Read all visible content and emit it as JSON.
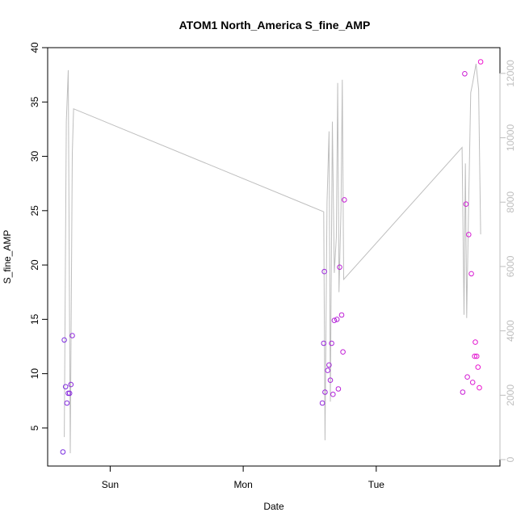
{
  "chart_data": {
    "type": "scatter",
    "title": "ATOM1 North_America S_fine_AMP",
    "xlabel": "Date",
    "ylabel": "S_fine_AMP",
    "x_ticks": [
      {
        "label": "Sun",
        "x": 0.95
      },
      {
        "label": "Mon",
        "x": 1.95
      },
      {
        "label": "Tue",
        "x": 2.95
      }
    ],
    "xlim": [
      0.48,
      3.88
    ],
    "ylim": [
      1.5,
      40.0
    ],
    "y_ticks": [
      5,
      10,
      15,
      20,
      25,
      30,
      35,
      40
    ],
    "y2lim": [
      -200,
      12800
    ],
    "y2_ticks": [
      0,
      2000,
      4000,
      6000,
      8000,
      10000,
      12000
    ],
    "y2_color": "#bebebe",
    "grid": false,
    "series": [
      {
        "kind": "points",
        "color_start": "#7b2fe0",
        "color_end": "#ef16cf",
        "points": [
          {
            "x": 0.595,
            "y": 2.8
          },
          {
            "x": 0.605,
            "y": 13.1
          },
          {
            "x": 0.615,
            "y": 8.8
          },
          {
            "x": 0.625,
            "y": 7.3
          },
          {
            "x": 0.635,
            "y": 8.2
          },
          {
            "x": 0.645,
            "y": 8.2
          },
          {
            "x": 0.655,
            "y": 9.0
          },
          {
            "x": 0.665,
            "y": 13.5
          },
          {
            "x": 2.545,
            "y": 7.3
          },
          {
            "x": 2.555,
            "y": 12.8
          },
          {
            "x": 2.56,
            "y": 19.4
          },
          {
            "x": 2.565,
            "y": 8.3
          },
          {
            "x": 2.585,
            "y": 10.3
          },
          {
            "x": 2.595,
            "y": 10.8
          },
          {
            "x": 2.605,
            "y": 9.4
          },
          {
            "x": 2.615,
            "y": 12.8
          },
          {
            "x": 2.625,
            "y": 8.1
          },
          {
            "x": 2.635,
            "y": 14.9
          },
          {
            "x": 2.655,
            "y": 15.0
          },
          {
            "x": 2.665,
            "y": 8.6
          },
          {
            "x": 2.675,
            "y": 19.8
          },
          {
            "x": 2.69,
            "y": 15.4
          },
          {
            "x": 2.7,
            "y": 12.0
          },
          {
            "x": 2.71,
            "y": 26.0
          },
          {
            "x": 3.6,
            "y": 8.3
          },
          {
            "x": 3.615,
            "y": 37.6
          },
          {
            "x": 3.625,
            "y": 25.6
          },
          {
            "x": 3.635,
            "y": 9.7
          },
          {
            "x": 3.645,
            "y": 22.8
          },
          {
            "x": 3.665,
            "y": 19.2
          },
          {
            "x": 3.675,
            "y": 9.2
          },
          {
            "x": 3.69,
            "y": 11.6
          },
          {
            "x": 3.695,
            "y": 12.9
          },
          {
            "x": 3.705,
            "y": 11.6
          },
          {
            "x": 3.715,
            "y": 10.6
          },
          {
            "x": 3.725,
            "y": 8.7
          },
          {
            "x": 3.735,
            "y": 38.7
          }
        ]
      },
      {
        "kind": "line",
        "axis": "right",
        "color": "#bebebe",
        "points": [
          {
            "x": 0.605,
            "y": 700
          },
          {
            "x": 0.62,
            "y": 10500
          },
          {
            "x": 0.635,
            "y": 12100
          },
          {
            "x": 0.65,
            "y": 200
          },
          {
            "x": 0.665,
            "y": 9500
          },
          {
            "x": 0.675,
            "y": 10900
          },
          {
            "x": 2.555,
            "y": 7700
          },
          {
            "x": 2.565,
            "y": 600
          },
          {
            "x": 2.58,
            "y": 8000
          },
          {
            "x": 2.595,
            "y": 10200
          },
          {
            "x": 2.605,
            "y": 1800
          },
          {
            "x": 2.62,
            "y": 10500
          },
          {
            "x": 2.635,
            "y": 5800
          },
          {
            "x": 2.65,
            "y": 6900
          },
          {
            "x": 2.66,
            "y": 11700
          },
          {
            "x": 2.67,
            "y": 5200
          },
          {
            "x": 2.685,
            "y": 7800
          },
          {
            "x": 2.695,
            "y": 11800
          },
          {
            "x": 2.705,
            "y": 5600
          },
          {
            "x": 3.595,
            "y": 9700
          },
          {
            "x": 3.61,
            "y": 4500
          },
          {
            "x": 3.62,
            "y": 9200
          },
          {
            "x": 3.63,
            "y": 4400
          },
          {
            "x": 3.645,
            "y": 8000
          },
          {
            "x": 3.66,
            "y": 11400
          },
          {
            "x": 3.675,
            "y": 11700
          },
          {
            "x": 3.7,
            "y": 12300
          },
          {
            "x": 3.72,
            "y": 11500
          },
          {
            "x": 3.735,
            "y": 7000
          }
        ]
      }
    ]
  }
}
